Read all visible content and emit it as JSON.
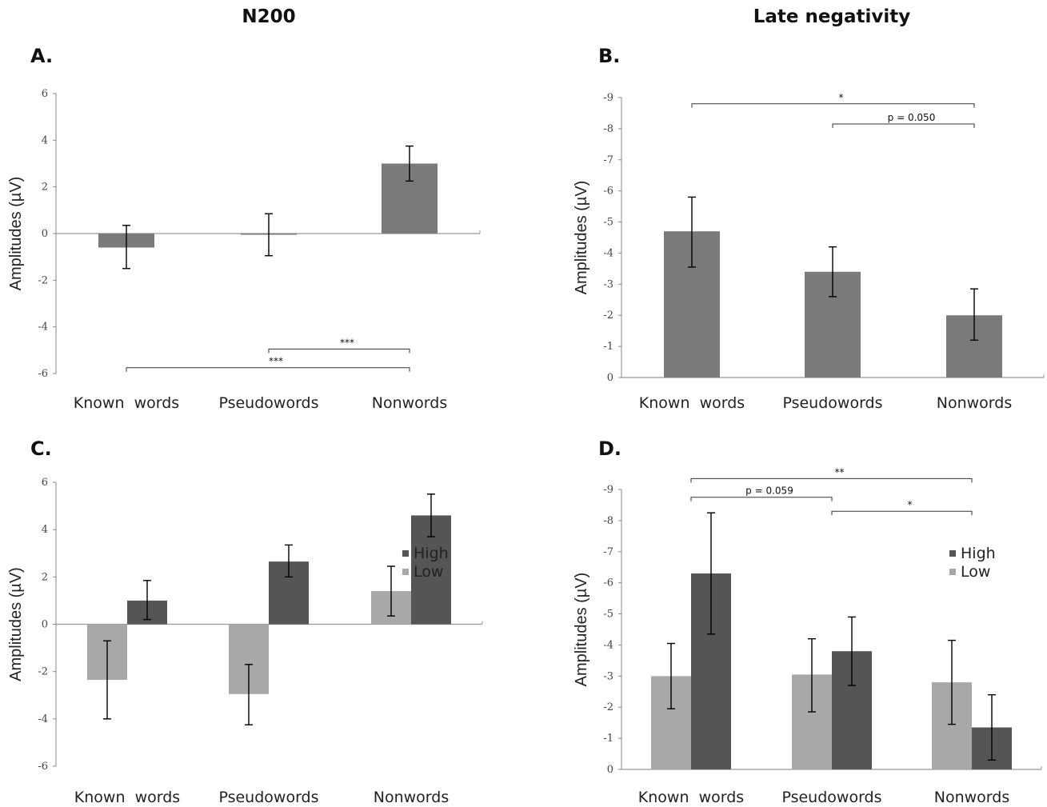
{
  "column_titles": {
    "left": "N200",
    "right": "Late negativity"
  },
  "chart_data": [
    {
      "id": "A",
      "panel_label": "A.",
      "type": "bar",
      "ylabel": "Amplitudes (µV)",
      "ylim": [
        -6,
        6
      ],
      "inverted_y": true,
      "yticks": [
        "-6",
        "-4",
        "-2",
        "0",
        "2",
        "4",
        "6"
      ],
      "ytick_values": [
        -6,
        -4,
        -2,
        0,
        2,
        4,
        6
      ],
      "categories": [
        "Known  words",
        "Pseudowords",
        "Nonwords"
      ],
      "series": [
        {
          "color": "#7a7a7a",
          "values": [
            -0.6,
            -0.03,
            3.0
          ],
          "err_low": [
            -1.5,
            -0.95,
            2.25
          ],
          "err_high": [
            0.35,
            0.85,
            3.75
          ]
        }
      ],
      "annotations": [
        {
          "text": "***",
          "from": 0,
          "to": 2,
          "level": -5.75
        },
        {
          "text": "***",
          "from": 1,
          "to": 2,
          "level": -4.95
        }
      ]
    },
    {
      "id": "B",
      "panel_label": "B.",
      "type": "bar",
      "ylabel": "Amplitudes (µV)",
      "ylim": [
        0,
        -9
      ],
      "inverted_y": true,
      "yticks": [
        "-9",
        "-8",
        "-7",
        "-6",
        "-5",
        "-4",
        "-3",
        "-2",
        "-1",
        "0"
      ],
      "ytick_values": [
        -9,
        -8,
        -7,
        -6,
        -5,
        -4,
        -3,
        -2,
        -1,
        0
      ],
      "categories": [
        "Known  words",
        "Pseudowords",
        "Nonwords"
      ],
      "series": [
        {
          "color": "#7a7a7a",
          "values": [
            -4.7,
            -3.4,
            -2.0
          ],
          "err_low": [
            -5.8,
            -4.2,
            -2.85
          ],
          "err_high": [
            -3.55,
            -2.6,
            -1.2
          ]
        }
      ],
      "annotations": [
        {
          "text": "*",
          "from": 0,
          "to": 2,
          "level": -8.8
        },
        {
          "text": "p = 0.050",
          "from": 1,
          "to": 2,
          "level": -8.15
        }
      ]
    },
    {
      "id": "C",
      "panel_label": "C.",
      "type": "bar",
      "ylabel": "Amplitudes (µV)",
      "ylim": [
        -6,
        6
      ],
      "inverted_y": true,
      "yticks": [
        "-6",
        "-4",
        "-2",
        "0",
        "2",
        "4",
        "6"
      ],
      "ytick_values": [
        -6,
        -4,
        -2,
        0,
        2,
        4,
        6
      ],
      "categories": [
        "Known  words",
        "Pseudowords",
        "Nonwords"
      ],
      "legend": {
        "position": "right"
      },
      "series": [
        {
          "name": "Low",
          "color": "#a8a8a8",
          "values": [
            -2.35,
            -2.95,
            1.4
          ],
          "err_low": [
            -4.0,
            -4.25,
            0.35
          ],
          "err_high": [
            -0.7,
            -1.7,
            2.45
          ]
        },
        {
          "name": "High",
          "color": "#555555",
          "values": [
            1.0,
            2.65,
            4.6
          ],
          "err_low": [
            0.2,
            2.0,
            3.7
          ],
          "err_high": [
            1.85,
            3.35,
            5.5
          ]
        }
      ],
      "annotations": []
    },
    {
      "id": "D",
      "panel_label": "D.",
      "type": "bar",
      "ylabel": "Amplitudes (µV)",
      "ylim": [
        0,
        -9
      ],
      "inverted_y": true,
      "yticks": [
        "-9",
        "-8",
        "-7",
        "-6",
        "-5",
        "-4",
        "-3",
        "-2",
        "-1",
        "0"
      ],
      "ytick_values": [
        -9,
        -8,
        -7,
        -6,
        -5,
        -4,
        -3,
        -2,
        -1,
        0
      ],
      "categories": [
        "Known  words",
        "Pseudowords",
        "Nonwords"
      ],
      "legend": {
        "position": "right"
      },
      "series": [
        {
          "name": "Low",
          "color": "#a8a8a8",
          "values": [
            -3.0,
            -3.05,
            -2.8
          ],
          "err_low": [
            -4.05,
            -4.2,
            -4.15
          ],
          "err_high": [
            -1.95,
            -1.85,
            -1.45
          ]
        },
        {
          "name": "High",
          "color": "#555555",
          "values": [
            -6.3,
            -3.8,
            -1.35
          ],
          "err_low": [
            -8.25,
            -4.9,
            -2.4
          ],
          "err_high": [
            -4.35,
            -2.7,
            -0.3
          ]
        }
      ],
      "annotations": [
        {
          "text": "**",
          "from": 0,
          "to": 2,
          "level": -9.35
        },
        {
          "text": "p = 0.059",
          "from": 0,
          "to": 1,
          "level": -8.75
        },
        {
          "text": "*",
          "from": 1,
          "to": 2,
          "level": -8.3
        }
      ]
    }
  ]
}
